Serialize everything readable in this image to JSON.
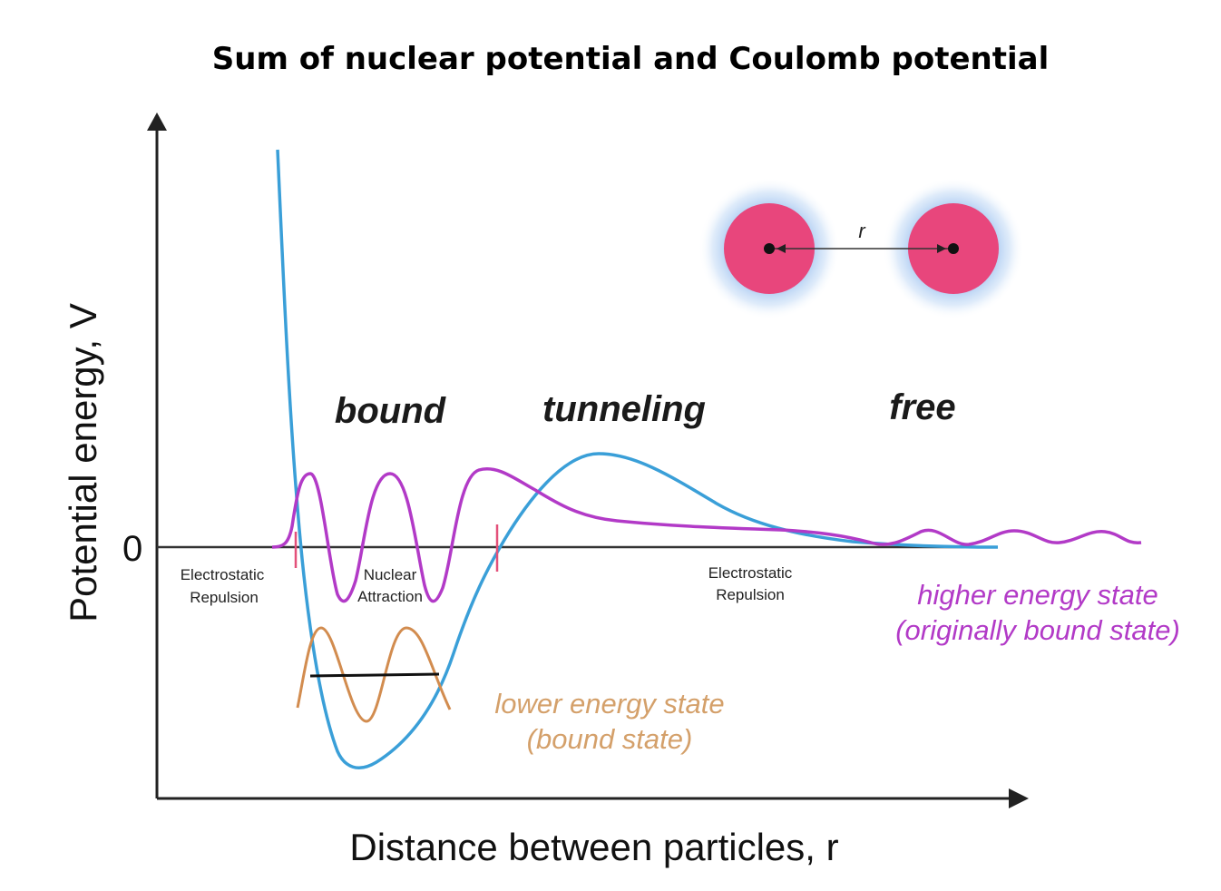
{
  "title": "Sum of nuclear potential and Coulomb potential",
  "axes": {
    "x_label": "Distance between particles, r",
    "y_label": "Potential energy, V",
    "zero_tick": "0"
  },
  "regions": {
    "bound": "bound",
    "tunneling": "tunneling",
    "free": "free"
  },
  "small_labels": {
    "left_repulsion_line1": "Electrostatic",
    "left_repulsion_line2": "Repulsion",
    "attraction_line1": "Nuclear",
    "attraction_line2": "Attraction",
    "right_repulsion_line1": "Electrostatic",
    "right_repulsion_line2": "Repulsion"
  },
  "states": {
    "higher": {
      "line1": "higher energy state",
      "line2": "(originally bound state)",
      "color": "#b23ac7"
    },
    "lower": {
      "line1": "lower energy state",
      "line2": "(bound state)",
      "color": "#d4a06a"
    }
  },
  "particles": {
    "separation_label": "r",
    "particle_color": "#e8467c",
    "glow_color": "#a9c9f2"
  },
  "colors": {
    "potential_curve": "#3a9fd8",
    "higher_wave": "#b23ac7",
    "lower_wave": "#d28c4f",
    "tick_marks": "#e3507a",
    "axis": "#222222"
  }
}
